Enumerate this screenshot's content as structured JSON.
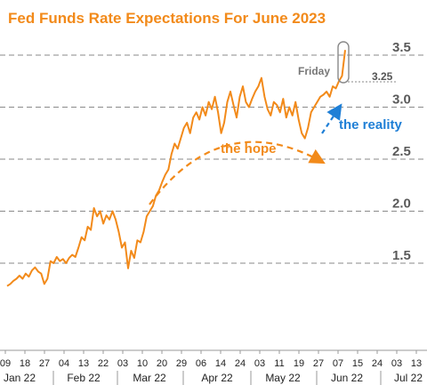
{
  "chart_data": {
    "type": "line",
    "title": "Fed Funds Rate Expectations For June 2023",
    "xlabel": "",
    "ylabel": "",
    "ylim": [
      0.3,
      3.8
    ],
    "yticks": [
      {
        "value": 1.5,
        "label": "1.5"
      },
      {
        "value": 2.0,
        "label": "2.0"
      },
      {
        "value": 2.5,
        "label": "2.5"
      },
      {
        "value": 3.0,
        "label": "3.0"
      },
      {
        "value": 3.5,
        "label": "3.5"
      }
    ],
    "grid": "horizontal-dashed",
    "line_color": "#f28a1a",
    "xticks": [
      "09",
      "18",
      "27",
      "04",
      "13",
      "22",
      "03",
      "10",
      "20",
      "29",
      "06",
      "14",
      "24",
      "03",
      "11",
      "19",
      "27",
      "07",
      "15",
      "24",
      "03",
      "13"
    ],
    "months": [
      "Jan 22",
      "Feb 22",
      "Mar 22",
      "Apr 22",
      "May 22",
      "Jun 22",
      "Jul 22"
    ],
    "series": [
      {
        "values": [
          1.28,
          1.3,
          1.33,
          1.35,
          1.38,
          1.35,
          1.4,
          1.37,
          1.43,
          1.46,
          1.42,
          1.4,
          1.3,
          1.35,
          1.52,
          1.5,
          1.56,
          1.52,
          1.54,
          1.5,
          1.55,
          1.58,
          1.56,
          1.65,
          1.75,
          1.72,
          1.85,
          1.82,
          2.03,
          1.95,
          2.0,
          1.88,
          1.96,
          1.92,
          2.0,
          1.92,
          1.8,
          1.65,
          1.7,
          1.45,
          1.62,
          1.55,
          1.72,
          1.7,
          1.8,
          1.95,
          2.0,
          2.05,
          2.15,
          2.2,
          2.28,
          2.35,
          2.4,
          2.55,
          2.65,
          2.6,
          2.7,
          2.8,
          2.85,
          2.75,
          2.9,
          2.95,
          2.88,
          3.0,
          2.92,
          3.05,
          2.98,
          3.1,
          2.95,
          2.75,
          2.85,
          3.05,
          3.15,
          3.02,
          2.9,
          3.1,
          3.2,
          3.05,
          3.0,
          3.08,
          3.15,
          3.2,
          3.28,
          3.1,
          2.98,
          2.92,
          3.05,
          3.02,
          2.95,
          3.08,
          2.9,
          3.0,
          2.92,
          3.05,
          2.88,
          2.75,
          2.7,
          2.8,
          2.95,
          3.0,
          3.05,
          3.1,
          3.12,
          3.15,
          3.1,
          3.2,
          3.18,
          3.25,
          3.3,
          3.55
        ],
        "x_range": [
          8,
          388
        ]
      }
    ],
    "annotations": [
      {
        "name": "the-hope",
        "text": "the hope",
        "color": "#f28a1a"
      },
      {
        "name": "the-reality",
        "text": "the reality",
        "color": "#1f7fd6"
      },
      {
        "name": "friday-label",
        "text": "Friday",
        "value": 3.5
      },
      {
        "name": "value-label",
        "text": "3.25",
        "value": 3.25
      }
    ]
  }
}
